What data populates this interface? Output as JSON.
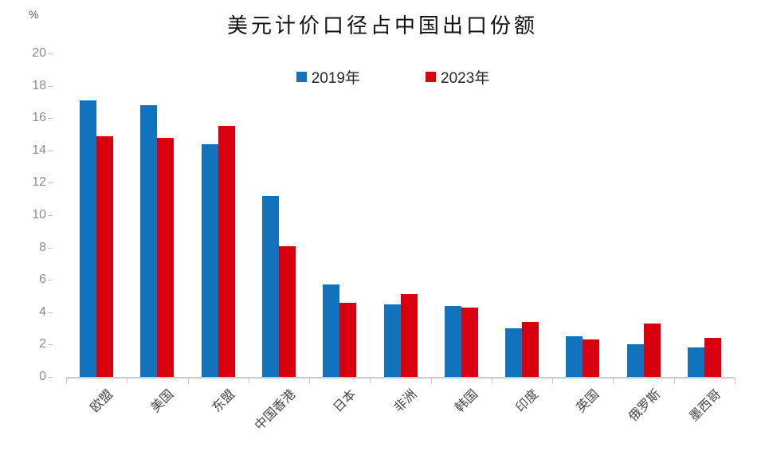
{
  "title": "美元计价口径占中国出口份额",
  "unit_label": "%",
  "legend": {
    "items": [
      "2019年",
      "2023年"
    ]
  },
  "chart_data": {
    "type": "bar",
    "title": "美元计价口径占中国出口份额",
    "categories": [
      "欧盟",
      "美国",
      "东盟",
      "中国香港",
      "日本",
      "非洲",
      "韩国",
      "印度",
      "英国",
      "俄罗斯",
      "墨西哥"
    ],
    "series": [
      {
        "name": "2019年",
        "color": "#1272bc",
        "values": [
          17.1,
          16.8,
          14.4,
          11.2,
          5.7,
          4.5,
          4.4,
          3.0,
          2.5,
          2.0,
          1.8
        ]
      },
      {
        "name": "2023年",
        "color": "#d8000f",
        "values": [
          14.9,
          14.8,
          15.5,
          8.1,
          4.6,
          5.1,
          4.3,
          3.4,
          2.3,
          3.3,
          2.4
        ]
      }
    ],
    "xlabel": "",
    "ylabel": "%",
    "ylim": [
      0,
      20
    ],
    "yticks": [
      0,
      2,
      4,
      6,
      8,
      10,
      12,
      14,
      16,
      18,
      20
    ],
    "grid": false,
    "legend_position": "top-center"
  }
}
